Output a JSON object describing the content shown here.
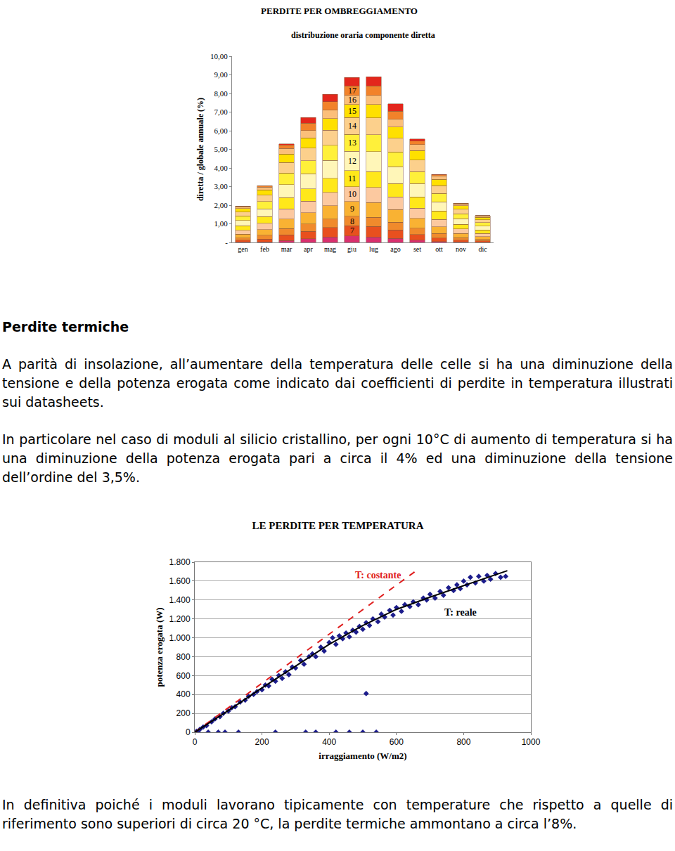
{
  "chart_data": [
    {
      "type": "bar",
      "stacked": true,
      "title": "PERDITE PER OMBREGGIAMENTO",
      "subtitle": "distribuzione oraria componente diretta",
      "y_label": "diretta / globale annuale (%)",
      "categories": [
        "gen",
        "feb",
        "mar",
        "apr",
        "mag",
        "giu",
        "lug",
        "ago",
        "set",
        "ott",
        "nov",
        "dic"
      ],
      "series": [
        {
          "name": null,
          "color": "#d9306e",
          "values": [
            0.02,
            0.03,
            0.1,
            0.2,
            0.3,
            0.35,
            0.3,
            0.22,
            0.12,
            0.05,
            0.02,
            0.01
          ]
        },
        {
          "name": "7",
          "color": "#e8501e",
          "values": [
            0.1,
            0.15,
            0.3,
            0.4,
            0.5,
            0.55,
            0.55,
            0.45,
            0.3,
            0.18,
            0.1,
            0.07
          ]
        },
        {
          "name": "8",
          "color": "#f08a2c",
          "values": [
            0.12,
            0.2,
            0.35,
            0.4,
            0.45,
            0.5,
            0.5,
            0.42,
            0.35,
            0.25,
            0.14,
            0.09
          ]
        },
        {
          "name": "9",
          "color": "#f9b233",
          "values": [
            0.2,
            0.3,
            0.5,
            0.6,
            0.72,
            0.8,
            0.8,
            0.68,
            0.52,
            0.36,
            0.22,
            0.15
          ]
        },
        {
          "name": "10",
          "color": "#fcc9a0",
          "values": [
            0.22,
            0.34,
            0.55,
            0.62,
            0.72,
            0.8,
            0.8,
            0.68,
            0.55,
            0.4,
            0.24,
            0.17
          ]
        },
        {
          "name": "11",
          "color": "#ffe81a",
          "values": [
            0.24,
            0.37,
            0.6,
            0.66,
            0.76,
            0.85,
            0.86,
            0.72,
            0.6,
            0.44,
            0.26,
            0.18
          ]
        },
        {
          "name": "12",
          "color": "#fff6b8",
          "values": [
            0.28,
            0.42,
            0.7,
            0.8,
            0.95,
            1.05,
            1.06,
            0.9,
            0.72,
            0.5,
            0.3,
            0.21
          ]
        },
        {
          "name": "13",
          "color": "#fff03a",
          "values": [
            0.24,
            0.38,
            0.62,
            0.7,
            0.82,
            0.9,
            0.92,
            0.78,
            0.65,
            0.45,
            0.26,
            0.18
          ]
        },
        {
          "name": "14",
          "color": "#fcd08c",
          "values": [
            0.22,
            0.35,
            0.58,
            0.68,
            0.8,
            0.9,
            0.9,
            0.75,
            0.62,
            0.42,
            0.24,
            0.16
          ]
        },
        {
          "name": "15",
          "color": "#ffe000",
          "values": [
            0.18,
            0.28,
            0.45,
            0.55,
            0.63,
            0.7,
            0.71,
            0.6,
            0.5,
            0.34,
            0.19,
            0.13
          ]
        },
        {
          "name": "16",
          "color": "#fbbf7a",
          "values": [
            0.1,
            0.16,
            0.3,
            0.4,
            0.45,
            0.5,
            0.5,
            0.42,
            0.32,
            0.18,
            0.1,
            0.07
          ]
        },
        {
          "name": "17",
          "color": "#f2822a",
          "values": [
            0.03,
            0.06,
            0.18,
            0.4,
            0.45,
            0.5,
            0.5,
            0.42,
            0.2,
            0.07,
            0.03,
            0.03
          ]
        },
        {
          "name": null,
          "color": "#e3261c",
          "values": [
            0.0,
            0.01,
            0.07,
            0.29,
            0.4,
            0.45,
            0.5,
            0.41,
            0.1,
            0.01,
            0.0,
            0.0
          ]
        }
      ],
      "annotations": [
        {
          "x": "giu",
          "text": "7"
        },
        {
          "x": "giu",
          "text": "8"
        },
        {
          "x": "giu",
          "text": "9"
        },
        {
          "x": "giu",
          "text": "10"
        },
        {
          "x": "giu",
          "text": "11"
        },
        {
          "x": "giu",
          "text": "12"
        },
        {
          "x": "giu",
          "text": "13"
        },
        {
          "x": "giu",
          "text": "14"
        },
        {
          "x": "giu",
          "text": "15"
        },
        {
          "x": "giu",
          "text": "16"
        },
        {
          "x": "giu",
          "text": "17"
        }
      ],
      "ylim": [
        0,
        10
      ],
      "yticks": [
        {
          "value": 0,
          "label": "-"
        },
        {
          "value": 1,
          "label": "1,00"
        },
        {
          "value": 2,
          "label": "2,00"
        },
        {
          "value": 3,
          "label": "3,00"
        },
        {
          "value": 4,
          "label": "4,00"
        },
        {
          "value": 5,
          "label": "5,00"
        },
        {
          "value": 6,
          "label": "6,00"
        },
        {
          "value": 7,
          "label": "7,00"
        },
        {
          "value": 8,
          "label": "8,00"
        },
        {
          "value": 9,
          "label": "9,00"
        },
        {
          "value": 10,
          "label": "10,00"
        }
      ],
      "grid": false
    },
    {
      "type": "scatter",
      "title": "LE PERDITE PER TEMPERATURA",
      "x_label": "irraggiamento (W/m2)",
      "y_label": "potenza erogata (W)",
      "series": [
        {
          "type": "scatter",
          "marker": "diamond",
          "color": "#1c1c8c",
          "x": [
            5,
            15,
            25,
            35,
            50,
            60,
            75,
            85,
            100,
            110,
            120,
            135,
            150,
            160,
            175,
            185,
            200,
            210,
            220,
            230,
            240,
            250,
            260,
            270,
            280,
            290,
            300,
            315,
            325,
            340,
            350,
            360,
            375,
            385,
            400,
            410,
            420,
            430,
            440,
            450,
            460,
            470,
            480,
            490,
            500,
            510,
            520,
            530,
            545,
            555,
            565,
            580,
            590,
            600,
            615,
            625,
            640,
            650,
            665,
            680,
            690,
            700,
            715,
            730,
            740,
            755,
            770,
            780,
            790,
            800,
            810,
            820,
            835,
            845,
            860,
            870,
            880,
            895,
            910,
            925,
            10,
            40,
            70,
            90,
            130,
            240,
            330,
            360,
            420,
            460,
            500,
            540,
            510
          ],
          "values": [
            10,
            30,
            55,
            70,
            110,
            140,
            165,
            200,
            225,
            260,
            270,
            320,
            340,
            380,
            400,
            430,
            450,
            500,
            490,
            560,
            540,
            600,
            570,
            640,
            610,
            690,
            680,
            760,
            720,
            800,
            830,
            800,
            900,
            860,
            950,
            1000,
            930,
            1020,
            990,
            1050,
            1010,
            1080,
            1060,
            1120,
            1090,
            1160,
            1130,
            1200,
            1170,
            1250,
            1220,
            1290,
            1240,
            1320,
            1280,
            1350,
            1330,
            1380,
            1350,
            1420,
            1400,
            1460,
            1420,
            1490,
            1450,
            1530,
            1500,
            1560,
            1520,
            1600,
            1560,
            1640,
            1580,
            1650,
            1600,
            1660,
            1620,
            1680,
            1640,
            1650,
            0,
            0,
            0,
            0,
            0,
            0,
            0,
            0,
            0,
            0,
            0,
            0,
            410
          ]
        },
        {
          "type": "line",
          "line_style": "dash",
          "color": "#e02020",
          "x": [
            0,
            655
          ],
          "values": [
            0,
            1700
          ]
        },
        {
          "type": "line",
          "line_style": "solid",
          "color": "#000000",
          "x": [
            0,
            100,
            200,
            300,
            400,
            500,
            600,
            700,
            800,
            900,
            930
          ],
          "values": [
            0,
            230,
            470,
            700,
            930,
            1130,
            1300,
            1430,
            1550,
            1670,
            1710
          ]
        }
      ],
      "annotations": [
        {
          "text": "T: costante",
          "x": 545,
          "y": 1660,
          "color": "#e02020"
        },
        {
          "text": "T: reale",
          "x": 790,
          "y": 1270,
          "color": "#000000"
        }
      ],
      "xlim": [
        0,
        1000
      ],
      "xticks": [
        0,
        200,
        400,
        600,
        800,
        1000
      ],
      "ylim": [
        0,
        1800
      ],
      "yticks": [
        0,
        200,
        400,
        600,
        800,
        {
          "value": 1000,
          "label": "1.000"
        },
        {
          "value": 1200,
          "label": "1.200"
        },
        {
          "value": 1400,
          "label": "1.400"
        },
        {
          "value": 1600,
          "label": "1.600"
        },
        {
          "value": 1800,
          "label": "1.800"
        }
      ],
      "grid": true
    }
  ],
  "document": {
    "heading": "Perdite termiche",
    "paragraphs": [
      "A parità di insolazione, all’aumentare della temperatura delle celle si ha una diminuzione della tensione e della potenza erogata come indicato dai coefficienti di perdite in temperatura illustrati sui datasheets.",
      "In particolare nel caso di moduli al silicio cristallino, per ogni 10°C di aumento di temperatura si ha una diminuzione della potenza erogata pari a circa il 4% ed una diminuzione della tensione dell’ordine del 3,5%.",
      "In definitiva poiché i moduli lavorano tipicamente con temperature che rispetto a quelle di riferimento sono superiori di circa 20 °C, la perdite termiche ammontano a circa l’8%."
    ]
  }
}
